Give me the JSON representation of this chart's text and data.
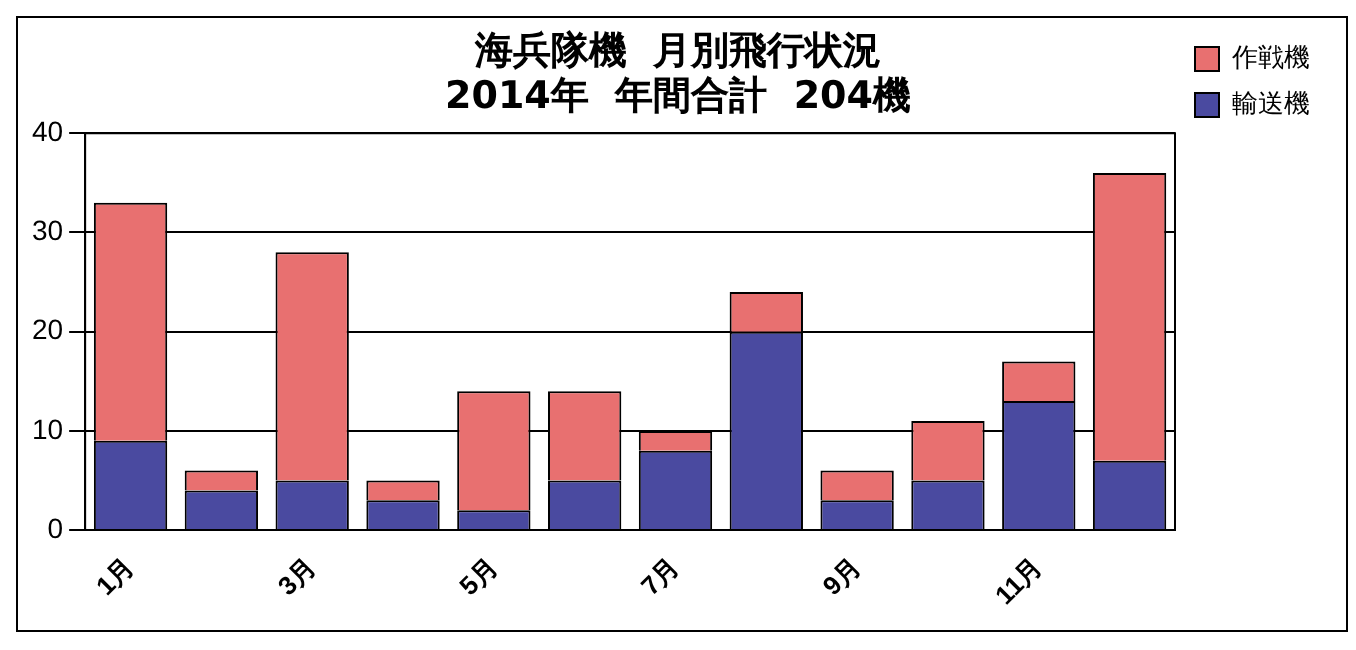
{
  "chart_data": {
    "type": "bar",
    "title": [
      "海兵隊機  月別飛行状況",
      "2014年  年間合計  204機"
    ],
    "categories": [
      "1月",
      null,
      "3月",
      null,
      "5月",
      null,
      "7月",
      null,
      "9月",
      null,
      "11月",
      null
    ],
    "stacked": true,
    "series": [
      {
        "name": "輸送機",
        "color": "#4a4aa0",
        "values": [
          9,
          4,
          5,
          3,
          2,
          5,
          8,
          20,
          3,
          5,
          13,
          7
        ]
      },
      {
        "name": "作戦機",
        "color": "#e87070",
        "values": [
          24,
          2,
          23,
          2,
          12,
          9,
          2,
          4,
          3,
          6,
          4,
          29
        ]
      }
    ],
    "ylim": [
      0,
      40
    ],
    "yticks": [
      0,
      10,
      20,
      30,
      40
    ],
    "grid": "y",
    "legend": "top right"
  }
}
